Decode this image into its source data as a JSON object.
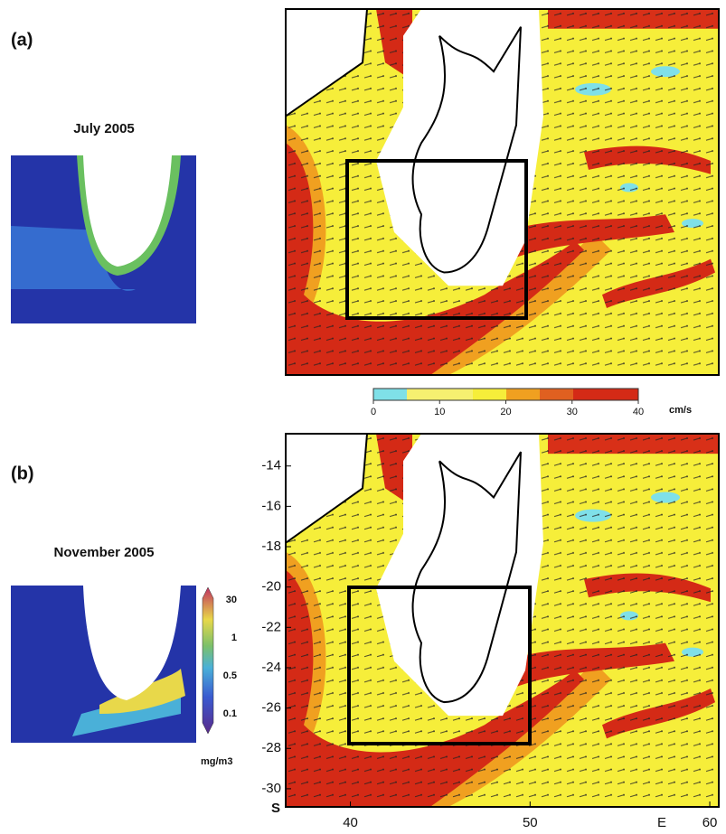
{
  "panel_a": {
    "label": "(a)",
    "title": "July 2005"
  },
  "panel_b": {
    "label": "(b)",
    "title": "November 2005"
  },
  "chlorophyll_scale": {
    "labels": [
      30,
      1,
      0.5,
      0.1
    ],
    "unit": "mg/m3"
  },
  "current_scale": {
    "ticks": [
      0,
      10,
      20,
      30,
      40
    ],
    "lim": [
      0,
      40
    ],
    "unit": "cm/s"
  },
  "map_b_axes": {
    "ylim": [
      -12.4,
      -30.9
    ],
    "yticks": [
      -14,
      -16,
      -18,
      -20,
      -22,
      -24,
      -26,
      -28,
      -30
    ],
    "y_hemisphere": "S",
    "xlim": [
      36.4,
      60.5
    ],
    "xticks": [
      40,
      50,
      60
    ],
    "x_hemisphere": "E"
  }
}
